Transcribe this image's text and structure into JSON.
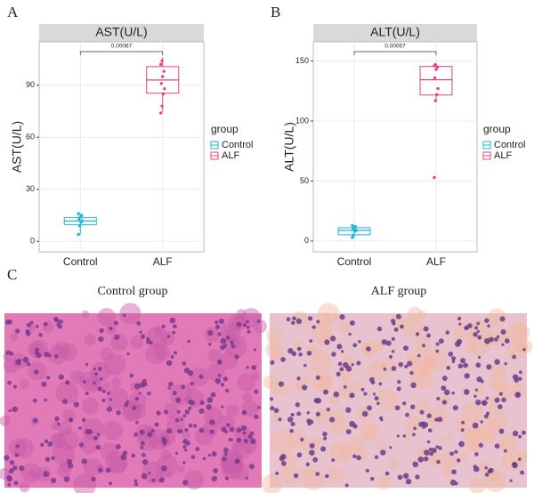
{
  "chart_data": [
    {
      "type": "box",
      "title": "AST(U/L)",
      "ylabel": "AST(U/L)",
      "categories": [
        "Control",
        "ALF"
      ],
      "colors": [
        "#1fb5d8",
        "#e8437a"
      ],
      "boxes": [
        {
          "min": 4,
          "q1": 9.7,
          "median": 11.8,
          "q3": 13.8,
          "max": 16,
          "points": [
            4,
            9,
            11,
            12,
            13,
            14,
            15,
            16
          ]
        },
        {
          "min": 74.6,
          "q1": 85.4,
          "median": 93,
          "q3": 100.7,
          "max": 106,
          "points": [
            74,
            78,
            85,
            88,
            91,
            95,
            98,
            102,
            104
          ]
        }
      ],
      "ylim": [
        -6,
        115
      ],
      "yticks": [
        0,
        30,
        60,
        90
      ],
      "grid": true,
      "legend_title": "group",
      "annotation": "0.00067"
    },
    {
      "type": "box",
      "title": "ALT(U/L)",
      "ylabel": "ALT(U/L)",
      "categories": [
        "Control",
        "ALF"
      ],
      "colors": [
        "#1fb5d8",
        "#e8437a"
      ],
      "boxes": [
        {
          "min": 3,
          "q1": 5.2,
          "median": 8.9,
          "q3": 11.1,
          "max": 13,
          "points": [
            3,
            5,
            8,
            9,
            10,
            11,
            12,
            13
          ]
        },
        {
          "min": 117,
          "q1": 121.7,
          "median": 134.4,
          "q3": 145.5,
          "max": 147,
          "points": [
            53,
            117,
            122,
            127,
            136,
            143,
            145,
            146,
            147
          ]
        }
      ],
      "ylim": [
        -9,
        166
      ],
      "yticks": [
        0,
        50,
        100,
        150
      ],
      "grid": true,
      "legend_title": "group",
      "annotation": "0.00067"
    }
  ],
  "figure": {
    "panel_labels": [
      "A",
      "B",
      "C"
    ],
    "images": [
      {
        "caption": "Control group"
      },
      {
        "caption": "ALF group"
      }
    ]
  }
}
